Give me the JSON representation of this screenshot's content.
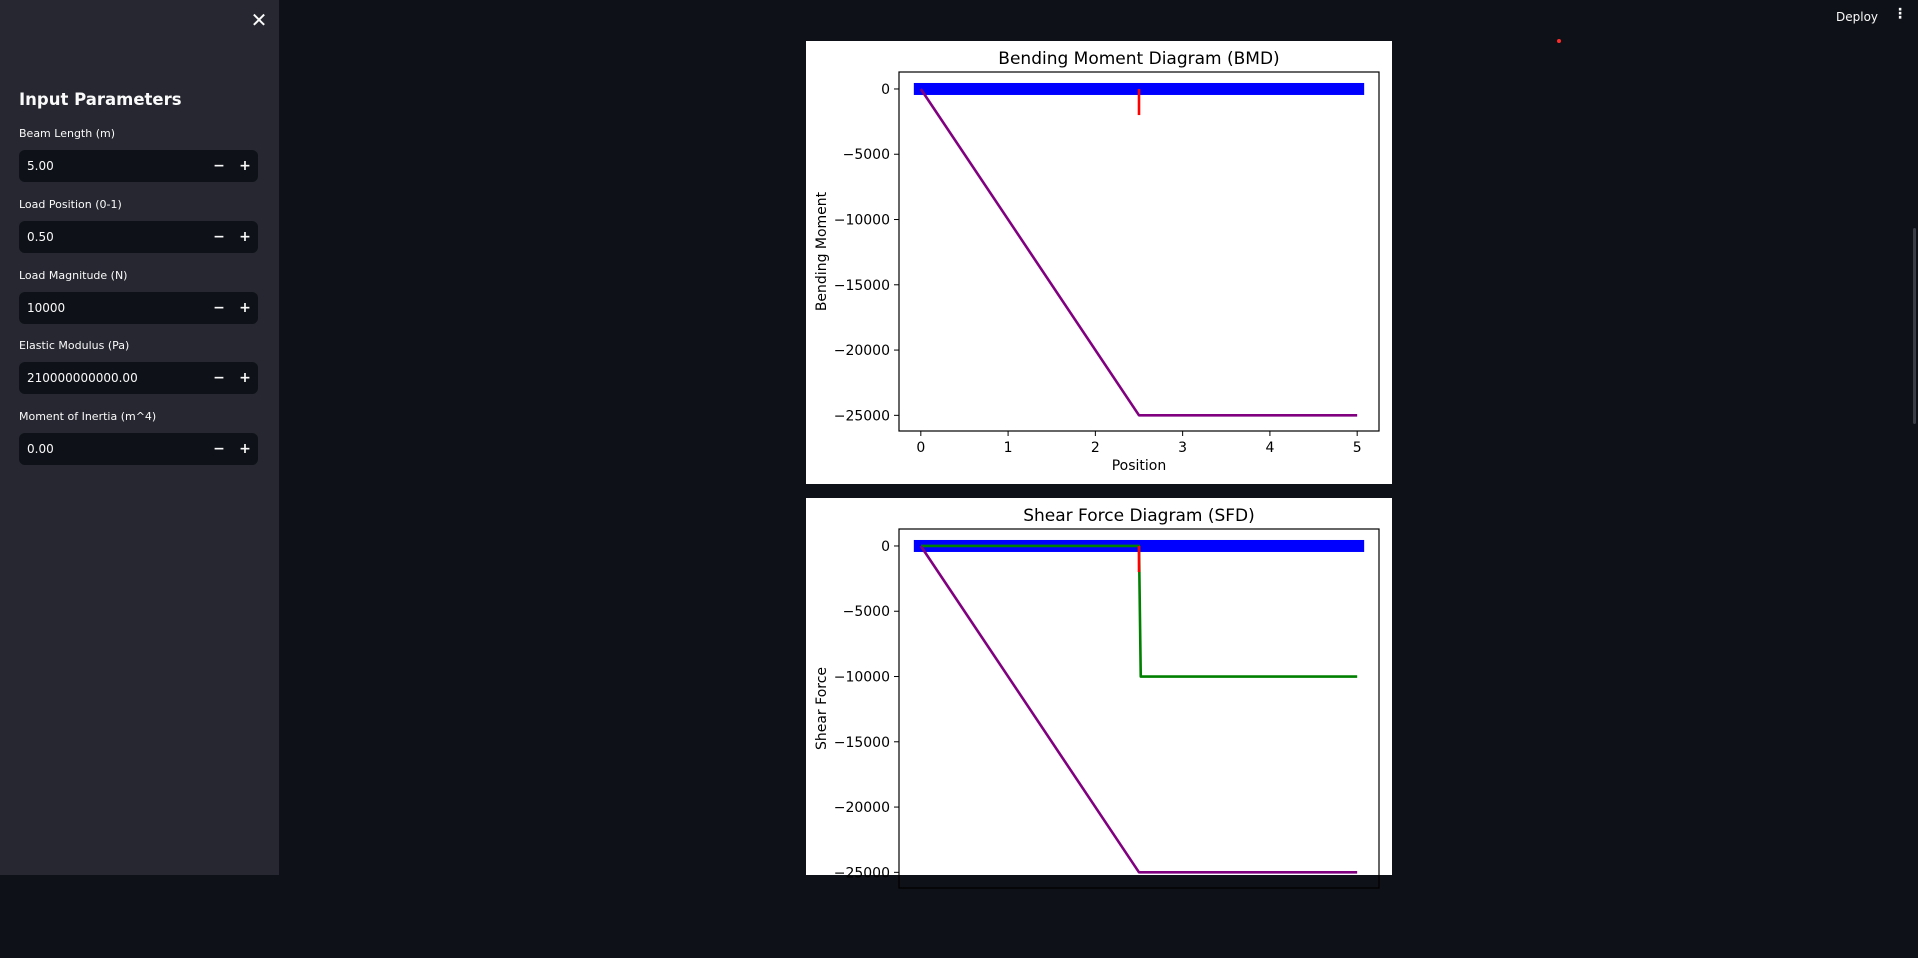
{
  "header": {
    "deploy_label": "Deploy",
    "menu_icon": "vertical-ellipsis-icon"
  },
  "sidebar": {
    "close_icon": "close-icon",
    "title": "Input Parameters",
    "fields": [
      {
        "label": "Beam Length (m)",
        "value": "5.00"
      },
      {
        "label": "Load Position (0-1)",
        "value": "0.50"
      },
      {
        "label": "Load Magnitude (N)",
        "value": "10000"
      },
      {
        "label": "Elastic Modulus (Pa)",
        "value": "210000000000.00"
      },
      {
        "label": "Moment of Inertia (m^4)",
        "value": "0.00"
      }
    ],
    "decrement_label": "−",
    "increment_label": "+"
  },
  "colors": {
    "app_background": "#0e1117",
    "sidebar_background": "#262730",
    "beam": "#0000ff",
    "load_marker": "#ff0000",
    "moment_line": "#800080",
    "shear_line": "#008000",
    "status_dot": "#ff2b2b"
  },
  "chart_data": [
    {
      "type": "line",
      "title": "Bending Moment Diagram (BMD)",
      "xlabel": "Position",
      "ylabel": "Bending Moment",
      "xlim": [
        -0.25,
        5.25
      ],
      "ylim": [
        -26200,
        1300
      ],
      "xticks": [
        0,
        1,
        2,
        3,
        4,
        5
      ],
      "yticks": [
        0,
        -5000,
        -10000,
        -15000,
        -20000,
        -25000
      ],
      "ytick_labels": [
        "0",
        "−5000",
        "−10000",
        "−15000",
        "−20000",
        "−25000"
      ],
      "beam": {
        "x": [
          -0.08,
          5.08
        ],
        "y": 0
      },
      "load_marker": {
        "x": 2.5,
        "y": [
          0,
          -2000
        ]
      },
      "series": [
        {
          "color": "#800080",
          "x": [
            0,
            2.5,
            5
          ],
          "y": [
            0,
            -25000,
            -25000
          ]
        }
      ],
      "grid": false
    },
    {
      "type": "line",
      "title": "Shear Force Diagram (SFD)",
      "xlabel": "",
      "ylabel": "Shear Force",
      "xlim": [
        -0.25,
        5.25
      ],
      "ylim": [
        -26200,
        1300
      ],
      "xticks": [],
      "yticks": [
        0,
        -5000,
        -10000,
        -15000,
        -20000,
        -25000
      ],
      "ytick_labels": [
        "0",
        "−5000",
        "−10000",
        "−15000",
        "−20000",
        "−25000"
      ],
      "beam": {
        "x": [
          -0.08,
          5.08
        ],
        "y": 0
      },
      "load_marker": {
        "x": 2.5,
        "y": [
          0,
          -2000
        ]
      },
      "series": [
        {
          "color": "#008000",
          "x": [
            0,
            2.5,
            2.52,
            5
          ],
          "y": [
            0,
            0,
            -10000,
            -10000
          ]
        },
        {
          "color": "#800080",
          "x": [
            0,
            2.5,
            5
          ],
          "y": [
            0,
            -25000,
            -25000
          ]
        }
      ],
      "grid": false
    }
  ]
}
